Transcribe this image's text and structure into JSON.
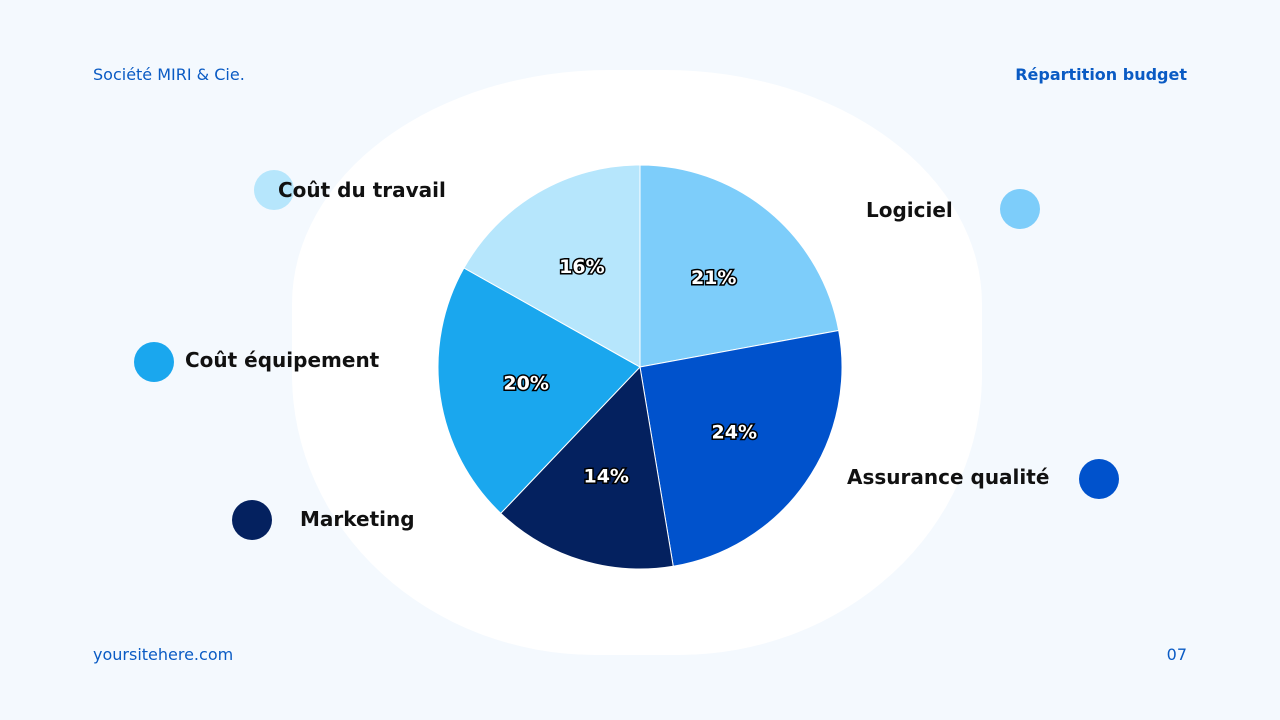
{
  "header": {
    "company": "Société MIRI & Cie.",
    "section": "Répartition budget"
  },
  "footer": {
    "website": "yoursitehere.com",
    "page_number": "07"
  },
  "chart_data": {
    "type": "pie",
    "title": "",
    "categories": [
      "Logiciel",
      "Assurance qualité",
      "Marketing",
      "Coût équipement",
      "Coût du travail"
    ],
    "values": [
      21,
      24,
      14,
      20,
      16
    ],
    "labels": [
      "21%",
      "24%",
      "14%",
      "20%",
      "16%"
    ],
    "colors": [
      "#7dcdfa",
      "#0052cc",
      "#04215f",
      "#1aa7ee",
      "#b6e6fc"
    ],
    "start": "12 o'clock, clockwise",
    "legend": "around the pie, dots with labels"
  }
}
